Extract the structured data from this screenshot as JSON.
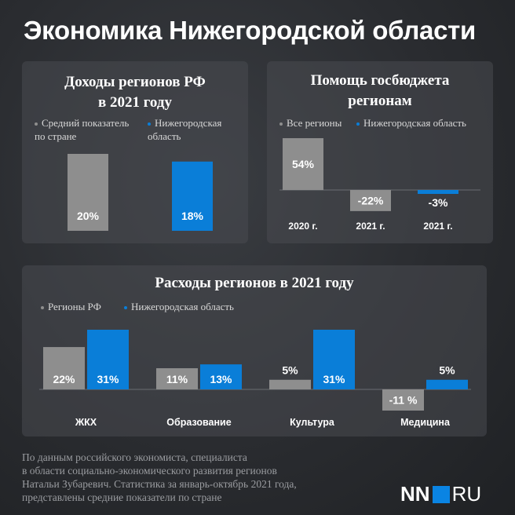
{
  "title": "Экономика Нижегородской области",
  "colors": {
    "gray": "#8e8e8e",
    "blue": "#0a7ed8",
    "text": "#ffffff"
  },
  "chart_data": [
    {
      "type": "bar",
      "title": "Доходы регионов РФ в 2021 году",
      "title_lines": [
        "Доходы регионов РФ",
        "в 2021 году"
      ],
      "legend": [
        "Средний показатель по стране",
        "Нижегородская область"
      ],
      "legend_lines": [
        [
          "Средний показатель",
          "по стране"
        ],
        [
          "Нижегородская",
          "область"
        ]
      ],
      "categories": [
        "",
        ""
      ],
      "values": [
        20,
        18
      ],
      "labels": [
        "20%",
        "18%"
      ],
      "ylim": [
        0,
        20
      ]
    },
    {
      "type": "bar",
      "title": "Помощь госбюджета регионам",
      "title_lines": [
        "Помощь госбюджета",
        "регионам"
      ],
      "legend": [
        "Все регионы",
        "Нижегородская область"
      ],
      "categories": [
        "2020 г.",
        "2021 г.",
        "2021 г."
      ],
      "values": [
        54,
        -22,
        -3
      ],
      "labels": [
        "54%",
        "-22%",
        "-3%"
      ],
      "series_index": [
        0,
        0,
        1
      ],
      "ylim": [
        -22,
        54
      ]
    },
    {
      "type": "bar",
      "title": "Расходы регионов в 2021 году",
      "categories": [
        "ЖКХ",
        "Образование",
        "Культура",
        "Медицина"
      ],
      "series": [
        {
          "name": "Регионы РФ",
          "values": [
            22,
            11,
            5,
            -11
          ],
          "labels": [
            "22%",
            "11%",
            "5%",
            "-11 %"
          ]
        },
        {
          "name": "Нижегородская область",
          "values": [
            31,
            13,
            31,
            5
          ],
          "labels": [
            "31%",
            "13%",
            "31%",
            "5%"
          ]
        }
      ],
      "ylim": [
        -11,
        31
      ]
    }
  ],
  "footnote": "По данным российского экономиста, специалиста\nв области социально-экономического развития регионов\nНатальи Зубаревич. Статистика за январь-октябрь 2021 года,\nпредставлены средние показатели по стране",
  "logo": {
    "left": "NN",
    "right": "RU"
  }
}
